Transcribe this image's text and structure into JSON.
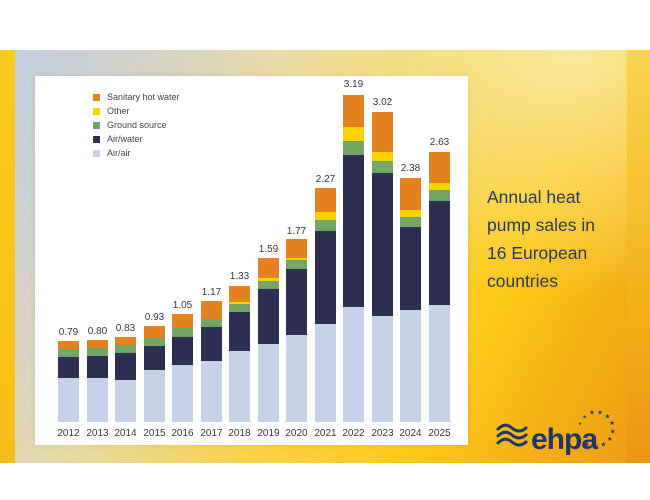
{
  "headline": {
    "lines": [
      "Annual heat",
      "pump sales in",
      "16 European",
      "countries"
    ]
  },
  "logo": {
    "text": "ehpa"
  },
  "chart_data": {
    "type": "bar",
    "stacked": true,
    "title": "",
    "xlabel": "",
    "ylabel": "",
    "unit_labels_on_bars": true,
    "grid": false,
    "legend_position": "top-left",
    "ylim": [
      0,
      3.4
    ],
    "categories": [
      "2012",
      "2013",
      "2014",
      "2015",
      "2016",
      "2017",
      "2018",
      "2019",
      "2020",
      "2021",
      "2022",
      "2023",
      "2024",
      "2025"
    ],
    "series": [
      {
        "name": "Air/air",
        "color": "#c5d2e8",
        "values": [
          0.43,
          0.43,
          0.41,
          0.5,
          0.55,
          0.59,
          0.69,
          0.76,
          0.84,
          0.95,
          1.12,
          1.03,
          1.09,
          1.14
        ]
      },
      {
        "name": "Air/water",
        "color": "#2e2d52",
        "values": [
          0.2,
          0.21,
          0.26,
          0.23,
          0.27,
          0.33,
          0.38,
          0.53,
          0.64,
          0.9,
          1.48,
          1.39,
          0.81,
          1.01
        ]
      },
      {
        "name": "Ground source",
        "color": "#73a567",
        "values": [
          0.08,
          0.08,
          0.08,
          0.08,
          0.09,
          0.08,
          0.08,
          0.08,
          0.09,
          0.11,
          0.14,
          0.12,
          0.1,
          0.11
        ]
      },
      {
        "name": "Other",
        "color": "#f9d200",
        "values": [
          0.0,
          0.0,
          0.0,
          0.0,
          0.0,
          0.0,
          0.02,
          0.03,
          0.02,
          0.08,
          0.14,
          0.09,
          0.07,
          0.07
        ]
      },
      {
        "name": "Sanitary hot water",
        "color": "#e3821f",
        "values": [
          0.08,
          0.08,
          0.08,
          0.12,
          0.14,
          0.17,
          0.16,
          0.19,
          0.18,
          0.23,
          0.31,
          0.39,
          0.31,
          0.3
        ]
      }
    ],
    "totals_labels": [
      "0.79",
      "0.80",
      "0.83",
      "0.93",
      "1.05",
      "1.17",
      "1.33",
      "1.59",
      "1.77",
      "2.27",
      "3.19",
      "3.02",
      "2.38",
      "2.63"
    ],
    "legend_order": [
      "Sanitary hot water",
      "Other",
      "Ground source",
      "Air/water",
      "Air/air"
    ]
  }
}
